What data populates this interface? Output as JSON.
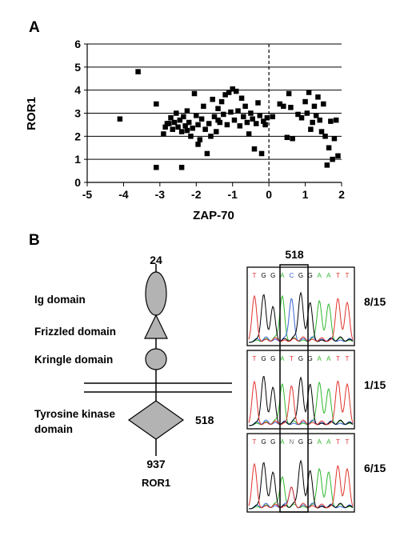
{
  "panels": {
    "a": "A",
    "b": "B"
  },
  "chart_data": {
    "type": "scatter",
    "title": "",
    "xlabel": "ZAP-70",
    "ylabel": "ROR1",
    "xlim": [
      -5,
      2
    ],
    "ylim": [
      0,
      6
    ],
    "xticks": [
      "-5",
      "-4",
      "-3",
      "-2",
      "-1",
      "0",
      "1",
      "2"
    ],
    "yticks": [
      "0",
      "1",
      "2",
      "3",
      "4",
      "5",
      "6"
    ],
    "grid": "horizontal",
    "reference_line_x": 0,
    "marker_color": "#000000",
    "points": [
      [
        -3.6,
        4.8
      ],
      [
        -4.1,
        2.75
      ],
      [
        -3.1,
        3.4
      ],
      [
        -3.1,
        0.65
      ],
      [
        -2.4,
        0.65
      ],
      [
        -2.9,
        2.1
      ],
      [
        -2.85,
        2.4
      ],
      [
        -2.8,
        2.55
      ],
      [
        -2.7,
        2.8
      ],
      [
        -2.65,
        2.3
      ],
      [
        -2.6,
        2.6
      ],
      [
        -2.55,
        3.0
      ],
      [
        -2.5,
        2.4
      ],
      [
        -2.45,
        2.7
      ],
      [
        -2.4,
        2.2
      ],
      [
        -2.35,
        2.85
      ],
      [
        -2.3,
        2.45
      ],
      [
        -2.25,
        3.1
      ],
      [
        -2.2,
        2.6
      ],
      [
        -2.15,
        2.0
      ],
      [
        -2.1,
        2.35
      ],
      [
        -2.05,
        3.85
      ],
      [
        -2.0,
        2.9
      ],
      [
        -1.95,
        2.5
      ],
      [
        -1.9,
        1.85
      ],
      [
        -1.85,
        2.75
      ],
      [
        -1.8,
        3.3
      ],
      [
        -1.75,
        2.3
      ],
      [
        -1.7,
        1.25
      ],
      [
        -1.65,
        2.55
      ],
      [
        -1.6,
        2.0
      ],
      [
        -1.55,
        3.6
      ],
      [
        -1.5,
        2.85
      ],
      [
        -1.45,
        2.2
      ],
      [
        -1.4,
        3.2
      ],
      [
        -1.35,
        2.6
      ],
      [
        -1.3,
        3.5
      ],
      [
        -1.25,
        2.95
      ],
      [
        -1.2,
        3.8
      ],
      [
        -1.15,
        2.5
      ],
      [
        -1.1,
        3.9
      ],
      [
        -1.05,
        3.05
      ],
      [
        -1.0,
        4.05
      ],
      [
        -0.95,
        2.7
      ],
      [
        -0.9,
        3.95
      ],
      [
        -0.85,
        3.1
      ],
      [
        -0.8,
        2.45
      ],
      [
        -0.75,
        3.65
      ],
      [
        -0.7,
        2.85
      ],
      [
        -0.65,
        3.3
      ],
      [
        -0.6,
        2.6
      ],
      [
        -0.55,
        2.1
      ],
      [
        -0.5,
        3.0
      ],
      [
        -0.45,
        2.75
      ],
      [
        -0.4,
        1.45
      ],
      [
        -0.35,
        2.55
      ],
      [
        -0.3,
        3.45
      ],
      [
        -0.25,
        2.9
      ],
      [
        -0.2,
        1.25
      ],
      [
        -0.15,
        2.65
      ],
      [
        -0.1,
        2.5
      ],
      [
        -0.05,
        2.8
      ],
      [
        0.1,
        2.85
      ],
      [
        0.3,
        3.4
      ],
      [
        0.4,
        3.3
      ],
      [
        0.5,
        1.95
      ],
      [
        0.55,
        3.85
      ],
      [
        0.6,
        3.25
      ],
      [
        0.65,
        1.9
      ],
      [
        0.8,
        2.95
      ],
      [
        0.9,
        2.8
      ],
      [
        1.0,
        3.5
      ],
      [
        1.05,
        3.0
      ],
      [
        1.1,
        3.9
      ],
      [
        1.15,
        2.3
      ],
      [
        1.2,
        2.6
      ],
      [
        1.25,
        3.3
      ],
      [
        1.3,
        2.9
      ],
      [
        1.35,
        3.7
      ],
      [
        1.4,
        2.7
      ],
      [
        1.45,
        2.2
      ],
      [
        1.5,
        3.4
      ],
      [
        1.55,
        2.0
      ],
      [
        1.6,
        0.75
      ],
      [
        1.65,
        1.5
      ],
      [
        1.7,
        2.65
      ],
      [
        1.75,
        1.0
      ],
      [
        1.8,
        1.9
      ],
      [
        1.85,
        2.7
      ],
      [
        1.9,
        1.15
      ],
      [
        -2.25,
        2.25
      ],
      [
        -2.75,
        2.55
      ],
      [
        -1.95,
        1.65
      ],
      [
        -1.4,
        2.7
      ]
    ]
  },
  "domain_diagram": {
    "protein": "ROR1",
    "start_residue": "24",
    "end_residue": "937",
    "mutation_residue": "518",
    "domains": [
      {
        "label": "Ig domain",
        "shape": "ellipse"
      },
      {
        "label": "Frizzled domain",
        "shape": "triangle"
      },
      {
        "label": "Kringle domain",
        "shape": "circle"
      },
      {
        "label": "Tyrosine kinase",
        "label2": "domain",
        "shape": "diamond"
      }
    ],
    "fill_color": "#b3b3b3"
  },
  "sequencing": {
    "position_label": "518",
    "traces": [
      {
        "bases": [
          "T",
          "G",
          "G",
          "A",
          "C",
          "G",
          "G",
          "A",
          "A",
          "T",
          "T"
        ],
        "fraction": "8/15"
      },
      {
        "bases": [
          "T",
          "G",
          "G",
          "A",
          "T",
          "G",
          "G",
          "A",
          "A",
          "T",
          "T"
        ],
        "fraction": "1/15"
      },
      {
        "bases": [
          "T",
          "G",
          "G",
          "A",
          "N",
          "G",
          "G",
          "A",
          "A",
          "T",
          "T"
        ],
        "fraction": "6/15"
      }
    ],
    "base_colors": {
      "A": "#2fb82f",
      "C": "#3b63d6",
      "G": "#000000",
      "T": "#e0332c",
      "N": "#7a7a7a"
    }
  }
}
